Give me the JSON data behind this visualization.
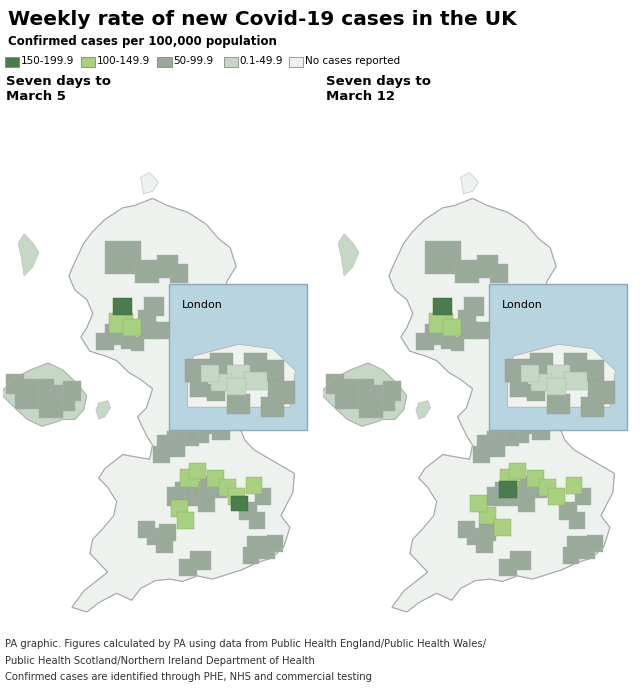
{
  "title": "Weekly rate of new Covid-19 cases in the UK",
  "subtitle": "Confirmed cases per 100,000 population",
  "legend_items": [
    {
      "label": "150-199.9",
      "color": "#4a7c4e"
    },
    {
      "label": "100-149.9",
      "color": "#a8d080"
    },
    {
      "label": "50-99.9",
      "color": "#9aaa9a"
    },
    {
      "label": "0.1-49.9",
      "color": "#c5d8c5"
    },
    {
      "label": "No cases reported",
      "color": "#eef2ee"
    }
  ],
  "map1_title": "Seven days to\nMarch 5",
  "map2_title": "Seven days to\nMarch 12",
  "london_label": "London",
  "ocean_color": "#b8d4e0",
  "panel_border_color": "#b0c8d8",
  "footer_lines": [
    "PA graphic. Figures calculated by PA using data from Public Health England/Public Health Wales/",
    "Public Health Scotland/Northern Ireland Department of Health",
    "Confirmed cases are identified through PHE, NHS and commercial testing"
  ],
  "fig_width": 6.4,
  "fig_height": 6.92,
  "dpi": 100
}
